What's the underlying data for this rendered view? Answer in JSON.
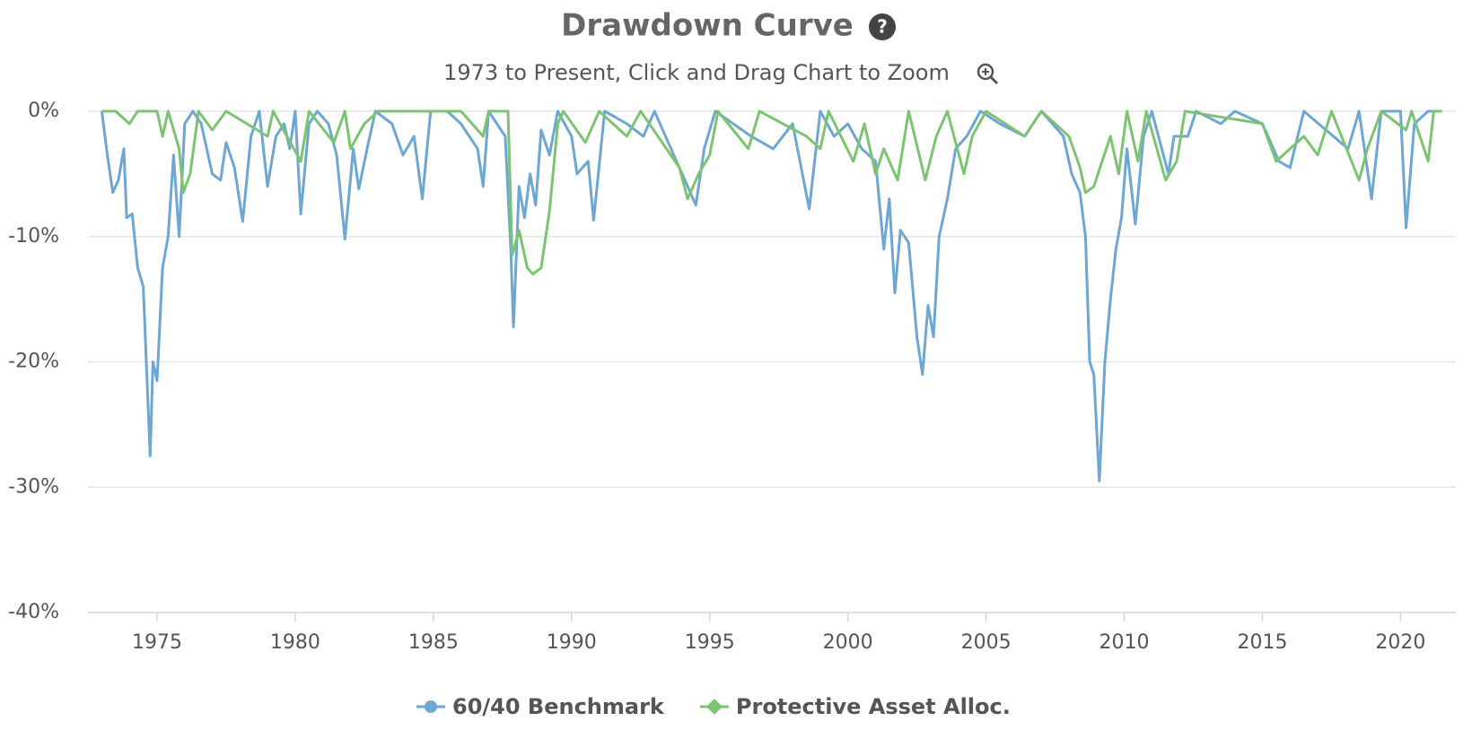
{
  "chart_data": {
    "type": "line",
    "title": "Drawdown Curve",
    "subtitle": "1973 to Present, Click and Drag Chart to Zoom",
    "xlim": [
      1972.5,
      2022
    ],
    "xticks": [
      1975,
      1980,
      1985,
      1990,
      1995,
      2000,
      2005,
      2010,
      2015,
      2020
    ],
    "ylim": [
      -40,
      0
    ],
    "yticks": [
      {
        "value": 0,
        "label": "0%"
      },
      {
        "value": -10,
        "label": "-10%"
      },
      {
        "value": -20,
        "label": "-20%"
      },
      {
        "value": -30,
        "label": "-30%"
      },
      {
        "value": -40,
        "label": "-40%"
      }
    ],
    "grid": true,
    "legend": "bottom",
    "series": [
      {
        "name": "60/40 Benchmark",
        "color": "#6ea7d2",
        "marker": "circle",
        "x": [
          1973.0,
          1973.2,
          1973.4,
          1973.6,
          1973.8,
          1973.9,
          1974.1,
          1974.3,
          1974.5,
          1974.75,
          1974.85,
          1975.0,
          1975.2,
          1975.4,
          1975.6,
          1975.8,
          1976.0,
          1976.3,
          1976.6,
          1977.0,
          1977.3,
          1977.5,
          1977.8,
          1978.1,
          1978.4,
          1978.7,
          1979.0,
          1979.3,
          1979.6,
          1979.8,
          1980.0,
          1980.2,
          1980.5,
          1980.8,
          1981.2,
          1981.5,
          1981.8,
          1982.1,
          1982.3,
          1982.6,
          1982.9,
          1983.5,
          1983.9,
          1984.3,
          1984.6,
          1984.9,
          1985.5,
          1986.0,
          1986.6,
          1986.8,
          1987.0,
          1987.6,
          1987.8,
          1987.9,
          1988.1,
          1988.3,
          1988.5,
          1988.7,
          1988.9,
          1989.2,
          1989.5,
          1990.0,
          1990.2,
          1990.6,
          1990.8,
          1991.2,
          1992.0,
          1992.6,
          1993.0,
          1994.2,
          1994.5,
          1994.8,
          1995.2,
          1996.5,
          1997.3,
          1998.0,
          1998.6,
          1999.0,
          1999.5,
          2000.0,
          2000.5,
          2001.0,
          2001.3,
          2001.5,
          2001.7,
          2001.9,
          2002.2,
          2002.5,
          2002.7,
          2002.9,
          2003.1,
          2003.3,
          2003.6,
          2003.9,
          2004.3,
          2004.8,
          2005.5,
          2006.4,
          2007.0,
          2007.8,
          2008.1,
          2008.4,
          2008.6,
          2008.75,
          2008.9,
          2009.1,
          2009.3,
          2009.5,
          2009.7,
          2009.9,
          2010.1,
          2010.4,
          2010.7,
          2011.0,
          2011.6,
          2011.8,
          2012.3,
          2012.6,
          2013.5,
          2014.0,
          2015.0,
          2015.6,
          2016.0,
          2016.5,
          2018.1,
          2018.5,
          2018.95,
          2019.3,
          2020.0,
          2020.2,
          2020.5,
          2021.0,
          2021.4
        ],
        "values": [
          0,
          -3.5,
          -6.5,
          -5.5,
          -3,
          -8.5,
          -8.2,
          -12.5,
          -14,
          -27.5,
          -20,
          -21.5,
          -12.5,
          -10,
          -3.5,
          -10,
          -1,
          0,
          -1,
          -5,
          -5.5,
          -2.5,
          -4.5,
          -8.8,
          -2,
          0,
          -6,
          -2,
          -1,
          -3,
          0,
          -8.2,
          -1,
          0,
          -1,
          -3.5,
          -10.2,
          -3,
          -6.2,
          -3,
          0,
          -1,
          -3.5,
          -2,
          -7,
          0,
          0,
          -1,
          -3,
          -6,
          0,
          -2,
          -11,
          -17.2,
          -6,
          -8.5,
          -5,
          -7.5,
          -1.5,
          -3.5,
          0,
          -2,
          -5,
          -4,
          -8.7,
          0,
          -1,
          -2,
          0,
          -6,
          -7.5,
          -3,
          0,
          -2,
          -3,
          -1,
          -7.8,
          0,
          -2,
          -1,
          -3,
          -4,
          -11,
          -7,
          -14.5,
          -9.5,
          -10.5,
          -18,
          -21,
          -15.5,
          -18,
          -10,
          -7,
          -3,
          -2,
          0,
          -1,
          -2,
          0,
          -2,
          -5,
          -6.5,
          -10,
          -20,
          -21,
          -29.5,
          -20,
          -15,
          -11,
          -8.5,
          -3,
          -9,
          -2,
          0,
          -5,
          -2,
          -2,
          0,
          -1,
          0,
          -1,
          -4,
          -4.5,
          0,
          -3,
          0,
          -7,
          0,
          0,
          -9.3,
          -1,
          0,
          0
        ]
      },
      {
        "name": "Protective Asset Alloc.",
        "color": "#7cc472",
        "marker": "diamond",
        "x": [
          1973.0,
          1973.5,
          1974.0,
          1974.3,
          1975.0,
          1975.2,
          1975.4,
          1975.8,
          1975.95,
          1976.2,
          1976.5,
          1977.0,
          1977.5,
          1979.0,
          1979.2,
          1980.2,
          1980.5,
          1981.4,
          1981.8,
          1982.0,
          1982.5,
          1983.0,
          1986.0,
          1986.8,
          1987.0,
          1987.7,
          1987.85,
          1988.1,
          1988.4,
          1988.6,
          1988.9,
          1989.2,
          1989.5,
          1989.7,
          1990.5,
          1991.0,
          1992.0,
          1992.5,
          1993.9,
          1994.2,
          1994.6,
          1995.0,
          1995.3,
          1996.4,
          1996.8,
          1998.5,
          1999.0,
          1999.3,
          2000.2,
          2000.6,
          2001.0,
          2001.3,
          2001.8,
          2002.2,
          2002.8,
          2003.2,
          2003.6,
          2004.2,
          2004.5,
          2005.0,
          2006.4,
          2007.0,
          2008.0,
          2008.4,
          2008.6,
          2008.9,
          2009.2,
          2009.5,
          2009.8,
          2010.1,
          2010.5,
          2010.8,
          2011.5,
          2011.9,
          2012.2,
          2015.0,
          2015.5,
          2016.0,
          2016.5,
          2017.0,
          2017.5,
          2018.5,
          2018.8,
          2019.3,
          2020.2,
          2020.4,
          2021.0,
          2021.2,
          2021.5
        ],
        "values": [
          0,
          0,
          -1,
          0,
          0,
          -2,
          0,
          -3,
          -6.5,
          -5,
          0,
          -1.5,
          0,
          -2,
          0,
          -4,
          0,
          -2.5,
          0,
          -3,
          -1,
          0,
          0,
          -2,
          0,
          0,
          -11.5,
          -9.5,
          -12.5,
          -13,
          -12.5,
          -8,
          -1,
          0,
          -2.5,
          0,
          -2,
          0,
          -4.5,
          -7,
          -5,
          -3.5,
          0,
          -3,
          0,
          -2,
          -3,
          0,
          -4,
          -1,
          -5,
          -3,
          -5.5,
          0,
          -5.5,
          -2,
          0,
          -5,
          -2,
          0,
          -2,
          0,
          -2,
          -4.5,
          -6.5,
          -6,
          -4,
          -2,
          -5,
          0,
          -4,
          0,
          -5.5,
          -4,
          0,
          -1,
          -4,
          -3,
          -2,
          -3.5,
          0,
          -5.5,
          -3,
          0,
          -1.5,
          0,
          -4,
          0,
          0
        ]
      }
    ]
  }
}
